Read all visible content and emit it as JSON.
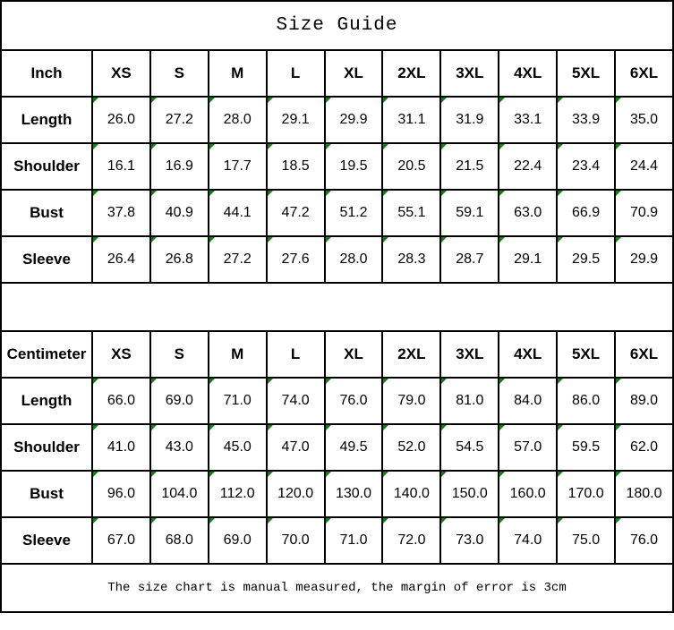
{
  "title": "Size Guide",
  "footer_note": "The size chart is manual measured, the margin of error is 3cm",
  "colors": {
    "grid_line": "#000000",
    "text": "#000000",
    "cell_note_triangle": "#138013",
    "background": "#ffffff"
  },
  "icons": {
    "cell_note_triangle": "small green css corner triangle (spreadsheet comment marker)"
  },
  "chart_data": [
    {
      "type": "table",
      "unit_label": "Inch",
      "columns": [
        "XS",
        "S",
        "M",
        "L",
        "XL",
        "2XL",
        "3XL",
        "4XL",
        "5XL",
        "6XL"
      ],
      "rows": [
        {
          "label": "Length",
          "values": [
            "26.0",
            "27.2",
            "28.0",
            "29.1",
            "29.9",
            "31.1",
            "31.9",
            "33.1",
            "33.9",
            "35.0"
          ]
        },
        {
          "label": "Shoulder",
          "values": [
            "16.1",
            "16.9",
            "17.7",
            "18.5",
            "19.5",
            "20.5",
            "21.5",
            "22.4",
            "23.4",
            "24.4"
          ]
        },
        {
          "label": "Bust",
          "values": [
            "37.8",
            "40.9",
            "44.1",
            "47.2",
            "51.2",
            "55.1",
            "59.1",
            "63.0",
            "66.9",
            "70.9"
          ]
        },
        {
          "label": "Sleeve",
          "values": [
            "26.4",
            "26.8",
            "27.2",
            "27.6",
            "28.0",
            "28.3",
            "28.7",
            "29.1",
            "29.5",
            "29.9"
          ]
        }
      ]
    },
    {
      "type": "table",
      "unit_label": "Centimeter",
      "columns": [
        "XS",
        "S",
        "M",
        "L",
        "XL",
        "2XL",
        "3XL",
        "4XL",
        "5XL",
        "6XL"
      ],
      "rows": [
        {
          "label": "Length",
          "values": [
            "66.0",
            "69.0",
            "71.0",
            "74.0",
            "76.0",
            "79.0",
            "81.0",
            "84.0",
            "86.0",
            "89.0"
          ]
        },
        {
          "label": "Shoulder",
          "values": [
            "41.0",
            "43.0",
            "45.0",
            "47.0",
            "49.5",
            "52.0",
            "54.5",
            "57.0",
            "59.5",
            "62.0"
          ]
        },
        {
          "label": "Bust",
          "values": [
            "96.0",
            "104.0",
            "112.0",
            "120.0",
            "130.0",
            "140.0",
            "150.0",
            "160.0",
            "170.0",
            "180.0"
          ]
        },
        {
          "label": "Sleeve",
          "values": [
            "67.0",
            "68.0",
            "69.0",
            "70.0",
            "71.0",
            "72.0",
            "73.0",
            "74.0",
            "75.0",
            "76.0"
          ]
        }
      ]
    }
  ]
}
